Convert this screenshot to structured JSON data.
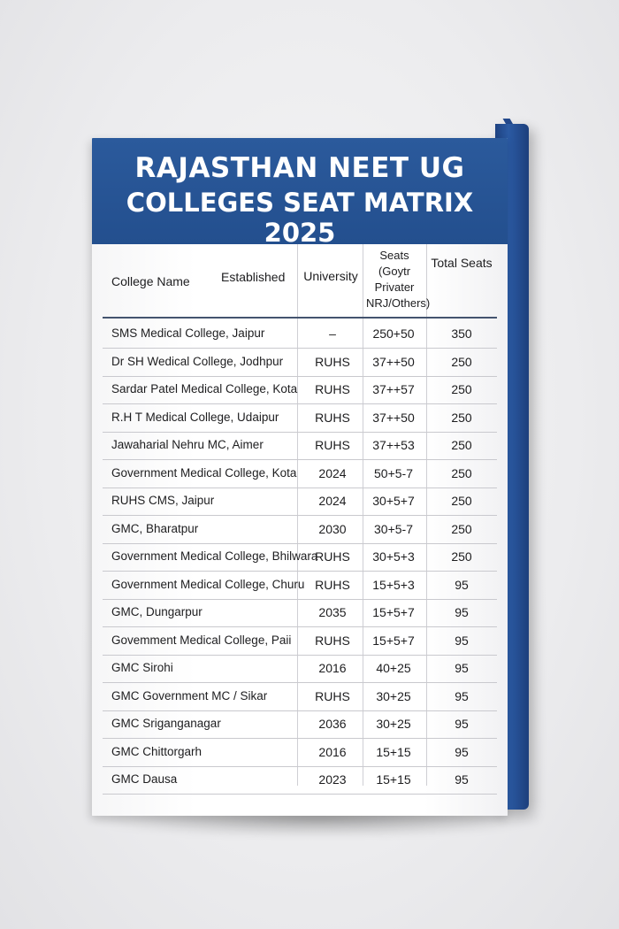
{
  "title": {
    "line1": "RAJASTHAN NEET UG",
    "line2": "COLLEGES SEAT MATRIX 2025"
  },
  "table": {
    "headers": {
      "college_name": "College Name",
      "established": "Established",
      "university": "University",
      "seats": "Seats (Goytr Privater NRJ/Others)",
      "total_seats": "Total Seats"
    },
    "rows": [
      {
        "name": "SMS Medical College, Jaipur",
        "university": "–",
        "seats": "250+50",
        "total": "350"
      },
      {
        "name": "Dr SH Wedical College, Jodhpur",
        "university": "RUHS",
        "seats": "37++50",
        "total": "250"
      },
      {
        "name": "Sardar Patel Medical College, Kota",
        "university": "RUHS",
        "seats": "37++57",
        "total": "250"
      },
      {
        "name": "R.H T Medical College, Udaipur",
        "university": "RUHS",
        "seats": "37++50",
        "total": "250"
      },
      {
        "name": "Jawaharial Nehru MC, Aimer",
        "university": "RUHS",
        "seats": "37++53",
        "total": "250"
      },
      {
        "name": "Government Medical College, Kota",
        "university": "2024",
        "seats": "50+5-7",
        "total": "250"
      },
      {
        "name": "RUHS CMS, Jaipur",
        "university": "2024",
        "seats": "30+5+7",
        "total": "250"
      },
      {
        "name": "GMC, Bharatpur",
        "university": "2030",
        "seats": "30+5-7",
        "total": "250"
      },
      {
        "name": "Government Medical College, Bhilwara",
        "university": "RUHS",
        "seats": "30+5+3",
        "total": "250"
      },
      {
        "name": "Government Medical College, Churu",
        "university": "RUHS",
        "seats": "15+5+3",
        "total": "95"
      },
      {
        "name": "GMC, Dungarpur",
        "university": "2035",
        "seats": "15+5+7",
        "total": "95"
      },
      {
        "name": "Govemment Medical College, Paii",
        "university": "RUHS",
        "seats": "15+5+7",
        "total": "95"
      },
      {
        "name": "GMC Sirohi",
        "university": "2016",
        "seats": "40+25",
        "total": "95"
      },
      {
        "name": "GMC Government MC / Sikar",
        "university": "RUHS",
        "seats": "30+25",
        "total": "95"
      },
      {
        "name": "GMC Sriganganagar",
        "university": "2036",
        "seats": "30+25",
        "total": "95"
      },
      {
        "name": "GMC Chittorgarh",
        "university": "2016",
        "seats": "15+15",
        "total": "95"
      },
      {
        "name": "GMC Dausa",
        "university": "2023",
        "seats": "15+15",
        "total": "95"
      }
    ]
  }
}
